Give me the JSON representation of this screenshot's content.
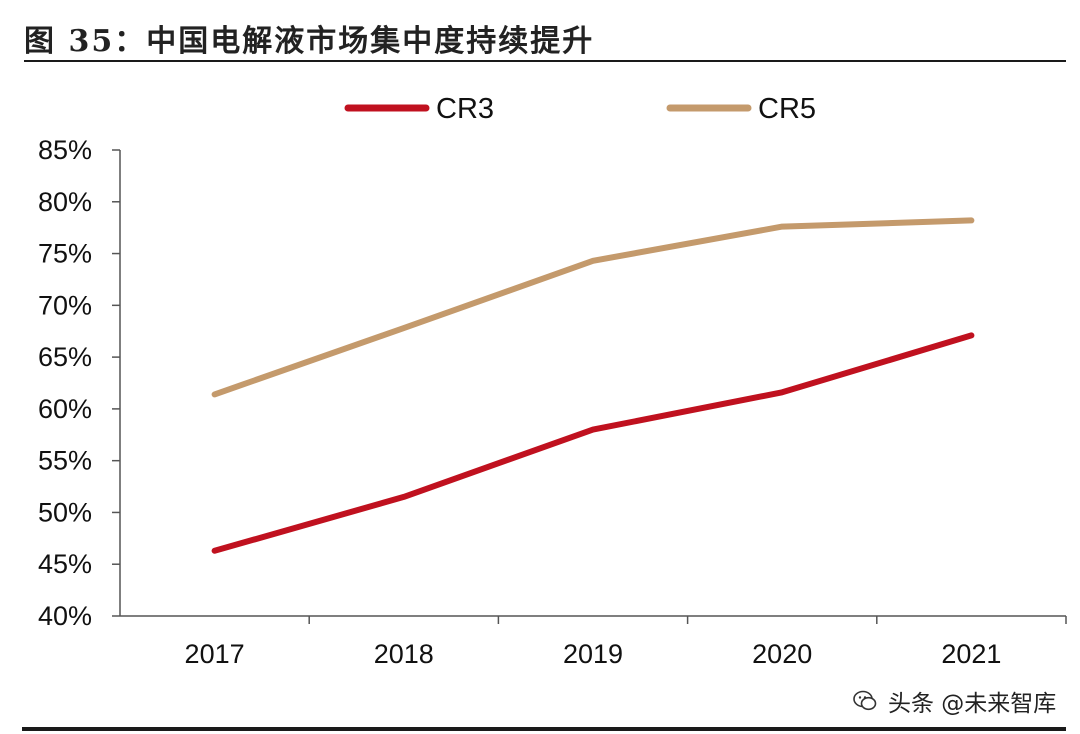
{
  "figure": {
    "title": "图 35：中国电解液市场集中度持续提升"
  },
  "chart_data": {
    "type": "line",
    "categories": [
      "2017",
      "2018",
      "2019",
      "2020",
      "2021"
    ],
    "series": [
      {
        "name": "CR3",
        "color": "#c0111f",
        "values": [
          46.3,
          51.5,
          58.0,
          61.6,
          67.1
        ]
      },
      {
        "name": "CR5",
        "color": "#c49a6c",
        "values": [
          61.4,
          67.8,
          74.3,
          77.6,
          78.2
        ]
      }
    ],
    "ylim": [
      40,
      85
    ],
    "yticks": [
      40,
      45,
      50,
      55,
      60,
      65,
      70,
      75,
      80,
      85
    ],
    "ytick_labels": [
      "40%",
      "45%",
      "50%",
      "55%",
      "60%",
      "65%",
      "70%",
      "75%",
      "80%",
      "85%"
    ],
    "legend_position": "top-center",
    "grid": false
  },
  "watermark": {
    "text": "头条 @未来智库"
  }
}
